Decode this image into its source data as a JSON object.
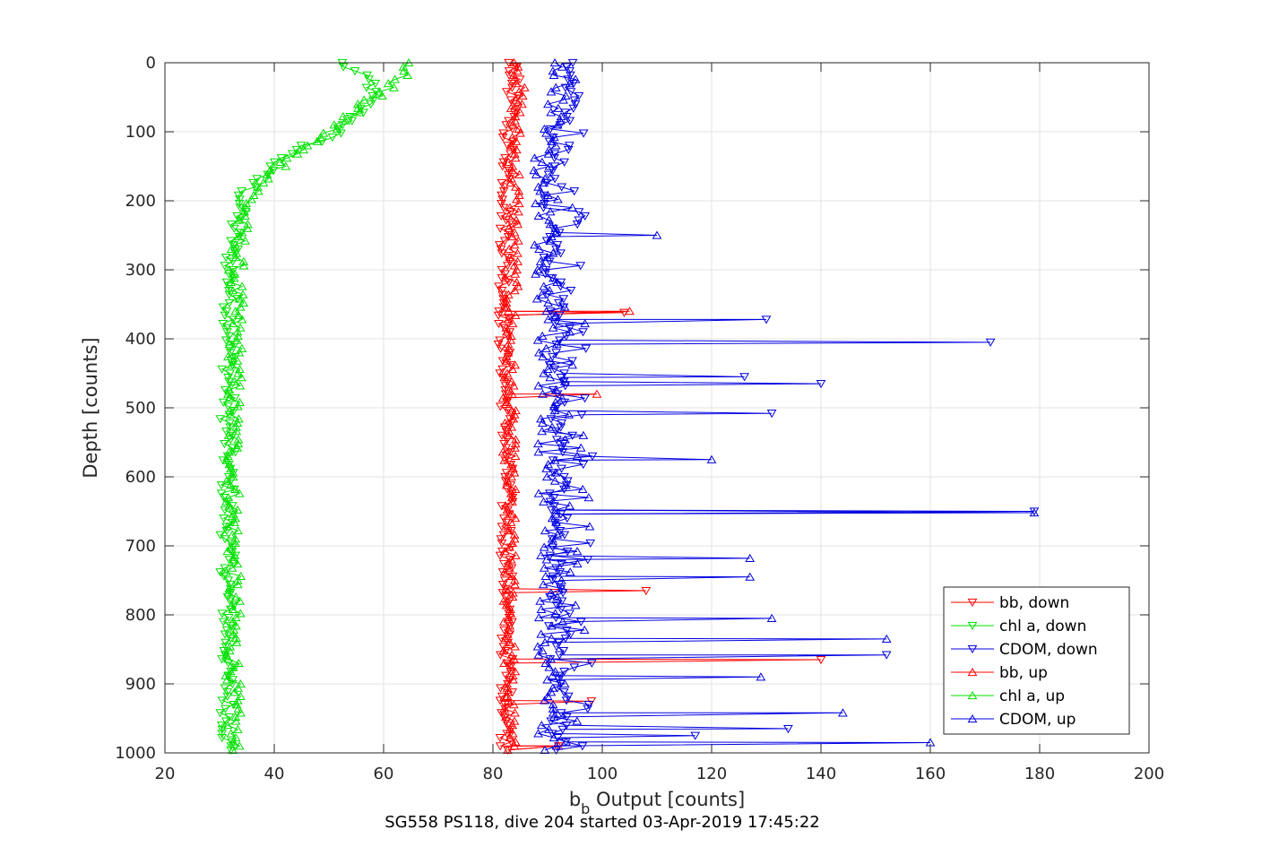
{
  "chart_data": {
    "type": "line",
    "title": "",
    "caption": "SG558 PS118, dive 204 started 03-Apr-2019 17:45:22",
    "xlabel_main": "b",
    "xlabel_sub": "b",
    "xlabel_rest": " Output [counts]",
    "ylabel": "Depth [counts]",
    "xlim": [
      20,
      200
    ],
    "ylim": [
      0,
      1000
    ],
    "y_reversed": true,
    "grid": true,
    "legend_position": "bottom-right",
    "x_ticks": [
      "20",
      "40",
      "60",
      "80",
      "100",
      "120",
      "140",
      "160",
      "180",
      "200"
    ],
    "y_ticks": [
      "0",
      "100",
      "200",
      "300",
      "400",
      "500",
      "600",
      "700",
      "800",
      "900",
      "1000"
    ],
    "series": [
      {
        "name": "bb, down",
        "color": "#ff0000",
        "marker": "triangle-down",
        "profile": [
          [
            0,
            84
          ],
          [
            50,
            83.5
          ],
          [
            100,
            83
          ],
          [
            200,
            82.5
          ],
          [
            300,
            82.3
          ],
          [
            400,
            82
          ],
          [
            500,
            82.5
          ],
          [
            600,
            82.5
          ],
          [
            700,
            82.5
          ],
          [
            800,
            82.5
          ],
          [
            900,
            82.5
          ],
          [
            1000,
            82.5
          ]
        ],
        "spikes": [
          [
            362,
            104
          ],
          [
            765,
            108
          ],
          [
            865,
            140
          ],
          [
            925,
            98
          ],
          [
            990,
            92
          ]
        ]
      },
      {
        "name": "chl a, down",
        "color": "#00e000",
        "marker": "triangle-down",
        "profile": [
          [
            0,
            52
          ],
          [
            30,
            58
          ],
          [
            60,
            57
          ],
          [
            100,
            52
          ],
          [
            130,
            43
          ],
          [
            160,
            38
          ],
          [
            190,
            34.5
          ],
          [
            230,
            33
          ],
          [
            300,
            32
          ],
          [
            400,
            32
          ],
          [
            500,
            31.5
          ],
          [
            600,
            31.5
          ],
          [
            700,
            31.5
          ],
          [
            800,
            31.5
          ],
          [
            900,
            31.5
          ],
          [
            1000,
            31.5
          ]
        ],
        "spikes": []
      },
      {
        "name": "CDOM, down",
        "color": "#0000e0",
        "marker": "triangle-down",
        "profile": [
          [
            0,
            95
          ],
          [
            50,
            94
          ],
          [
            100,
            92
          ],
          [
            150,
            91
          ],
          [
            200,
            91
          ],
          [
            300,
            91
          ],
          [
            400,
            92
          ],
          [
            500,
            92
          ],
          [
            600,
            92
          ],
          [
            700,
            92
          ],
          [
            800,
            92
          ],
          [
            900,
            92
          ],
          [
            1000,
            92
          ]
        ],
        "spikes": [
          [
            372,
            130
          ],
          [
            405,
            171
          ],
          [
            455,
            126
          ],
          [
            465,
            140
          ],
          [
            508,
            131
          ],
          [
            650,
            179
          ],
          [
            858,
            152
          ],
          [
            975,
            117
          ],
          [
            965,
            134
          ]
        ]
      },
      {
        "name": "bb, up",
        "color": "#ff0000",
        "marker": "triangle-up",
        "profile": [
          [
            0,
            85
          ],
          [
            50,
            84.5
          ],
          [
            100,
            84
          ],
          [
            200,
            84
          ],
          [
            300,
            83.5
          ],
          [
            400,
            83
          ],
          [
            500,
            83
          ],
          [
            600,
            83
          ],
          [
            700,
            83
          ],
          [
            800,
            83
          ],
          [
            900,
            83
          ],
          [
            1000,
            83
          ]
        ],
        "spikes": [
          [
            360,
            105
          ],
          [
            480,
            99
          ],
          [
            990,
            92
          ]
        ]
      },
      {
        "name": "chl a, up",
        "color": "#00e000",
        "marker": "triangle-up",
        "profile": [
          [
            0,
            65
          ],
          [
            30,
            62
          ],
          [
            60,
            56
          ],
          [
            100,
            50
          ],
          [
            130,
            44
          ],
          [
            160,
            40
          ],
          [
            190,
            36
          ],
          [
            230,
            34
          ],
          [
            300,
            33
          ],
          [
            400,
            33
          ],
          [
            500,
            32.5
          ],
          [
            600,
            32.5
          ],
          [
            700,
            32.5
          ],
          [
            800,
            32.5
          ],
          [
            900,
            32.5
          ],
          [
            1000,
            32.5
          ]
        ],
        "spikes": []
      },
      {
        "name": "CDOM, up",
        "color": "#0000e0",
        "marker": "triangle-up",
        "profile": [
          [
            0,
            93
          ],
          [
            50,
            92
          ],
          [
            100,
            90
          ],
          [
            150,
            89
          ],
          [
            200,
            89
          ],
          [
            300,
            89.5
          ],
          [
            400,
            90
          ],
          [
            500,
            90
          ],
          [
            600,
            90
          ],
          [
            700,
            90
          ],
          [
            800,
            90
          ],
          [
            900,
            90
          ],
          [
            1000,
            90
          ]
        ],
        "spikes": [
          [
            250,
            110
          ],
          [
            575,
            120
          ],
          [
            652,
            179
          ],
          [
            718,
            127
          ],
          [
            745,
            127
          ],
          [
            835,
            152
          ],
          [
            942,
            144
          ],
          [
            985,
            160
          ],
          [
            805,
            131
          ],
          [
            890,
            129
          ]
        ]
      }
    ]
  }
}
